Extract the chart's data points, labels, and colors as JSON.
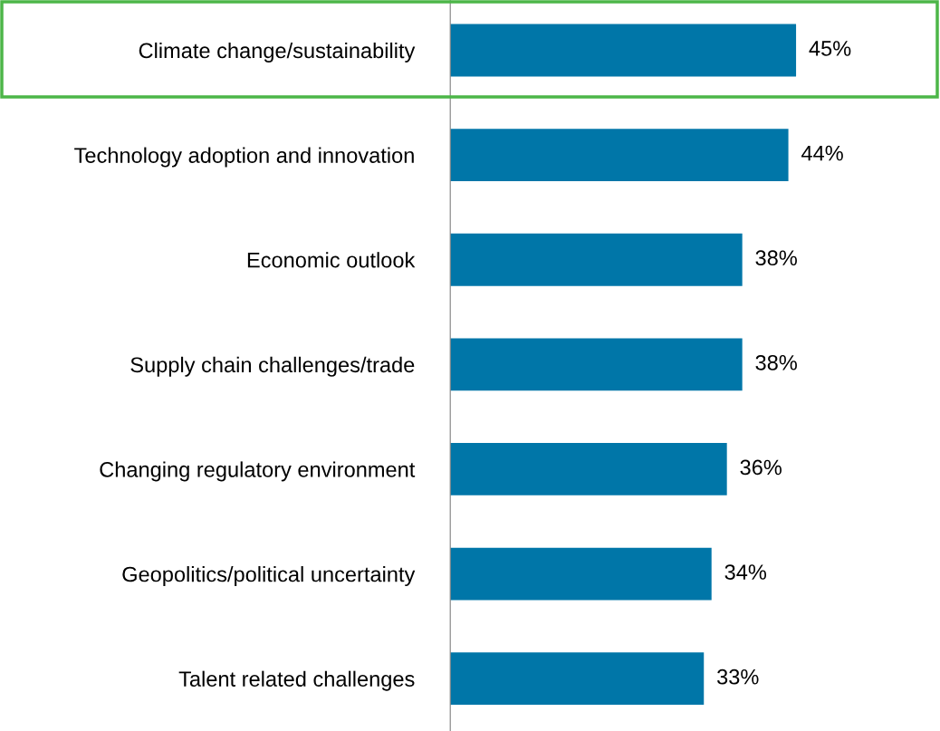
{
  "chart_data": {
    "type": "bar",
    "orientation": "horizontal",
    "categories": [
      "Climate change/sustainability",
      "Technology adoption and innovation",
      "Economic outlook",
      "Supply chain challenges/trade",
      "Changing regulatory environment",
      "Geopolitics/political uncertainty",
      "Talent related challenges"
    ],
    "values": [
      45,
      44,
      38,
      38,
      36,
      34,
      33
    ],
    "value_labels": [
      "45%",
      "44%",
      "38%",
      "38%",
      "36%",
      "34%",
      "33%"
    ],
    "color": "#0076a8",
    "tick_labels": "y",
    "grid": false,
    "legend": false
  }
}
